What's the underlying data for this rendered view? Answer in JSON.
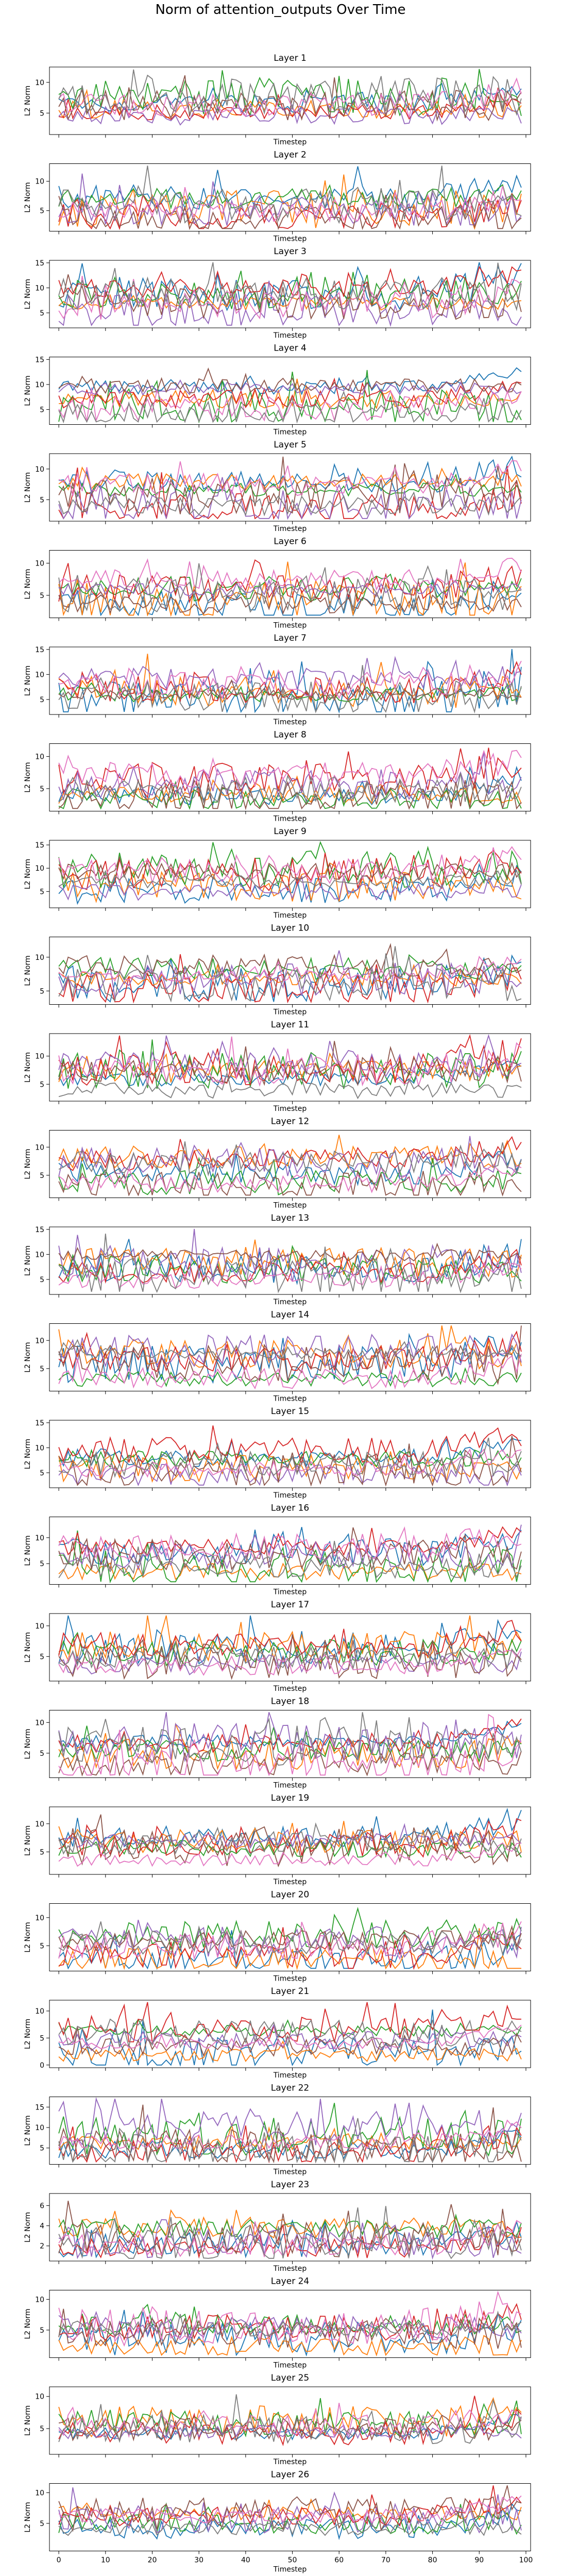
{
  "title": "Norm of attention_outputs Over Time",
  "colors": [
    "#1f77b4",
    "#ff7f0e",
    "#2ca02c",
    "#d62728",
    "#9467bd",
    "#8c564b",
    "#e377c2",
    "#7f7f7f"
  ],
  "chart_data": [
    {
      "type": "line",
      "title": "Layer 1",
      "xlabel": "Timestep",
      "ylabel": "L2 Norm",
      "xlim": [
        -2,
        101
      ],
      "ylim": [
        1.5,
        12.5
      ],
      "yticks": [
        5,
        10
      ],
      "grid": false
    },
    {
      "type": "line",
      "title": "Layer 2",
      "xlabel": "Timestep",
      "ylabel": "L2 Norm",
      "xlim": [
        -2,
        101
      ],
      "ylim": [
        1.5,
        13
      ],
      "yticks": [
        5,
        10
      ],
      "grid": false
    },
    {
      "type": "line",
      "title": "Layer 3",
      "xlabel": "Timestep",
      "ylabel": "L2 Norm",
      "xlim": [
        -2,
        101
      ],
      "ylim": [
        2,
        15.5
      ],
      "yticks": [
        5,
        10,
        15
      ],
      "grid": false
    },
    {
      "type": "line",
      "title": "Layer 4",
      "xlabel": "Timestep",
      "ylabel": "L2 Norm",
      "xlim": [
        -2,
        101
      ],
      "ylim": [
        2,
        15.5
      ],
      "yticks": [
        5,
        10,
        15
      ],
      "grid": false
    },
    {
      "type": "line",
      "title": "Layer 5",
      "xlabel": "Timestep",
      "ylabel": "L2 Norm",
      "xlim": [
        -2,
        101
      ],
      "ylim": [
        1.5,
        12.5
      ],
      "yticks": [
        5,
        10
      ],
      "grid": false
    },
    {
      "type": "line",
      "title": "Layer 6",
      "xlabel": "Timestep",
      "ylabel": "L2 Norm",
      "xlim": [
        -2,
        101
      ],
      "ylim": [
        1.5,
        12
      ],
      "yticks": [
        5,
        10
      ],
      "grid": false
    },
    {
      "type": "line",
      "title": "Layer 7",
      "xlabel": "Timestep",
      "ylabel": "L2 Norm",
      "xlim": [
        -2,
        101
      ],
      "ylim": [
        2,
        15.5
      ],
      "yticks": [
        5,
        10,
        15
      ],
      "grid": false
    },
    {
      "type": "line",
      "title": "Layer 8",
      "xlabel": "Timestep",
      "ylabel": "L2 Norm",
      "xlim": [
        -2,
        101
      ],
      "ylim": [
        1.5,
        12
      ],
      "yticks": [
        5,
        10
      ],
      "grid": false
    },
    {
      "type": "line",
      "title": "Layer 9",
      "xlabel": "Timestep",
      "ylabel": "L2 Norm",
      "xlim": [
        -2,
        101
      ],
      "ylim": [
        1.5,
        16
      ],
      "yticks": [
        5,
        10,
        15
      ],
      "grid": false
    },
    {
      "type": "line",
      "title": "Layer 10",
      "xlabel": "Timestep",
      "ylabel": "L2 Norm",
      "xlim": [
        -2,
        101
      ],
      "ylim": [
        3,
        13
      ],
      "yticks": [
        5,
        10
      ],
      "grid": false
    },
    {
      "type": "line",
      "title": "Layer 11",
      "xlabel": "Timestep",
      "ylabel": "L2 Norm",
      "xlim": [
        -2,
        101
      ],
      "ylim": [
        2,
        14
      ],
      "yticks": [
        5,
        10
      ],
      "grid": false
    },
    {
      "type": "line",
      "title": "Layer 12",
      "xlabel": "Timestep",
      "ylabel": "L2 Norm",
      "xlim": [
        -2,
        101
      ],
      "ylim": [
        1,
        13
      ],
      "yticks": [
        5,
        10
      ],
      "grid": false
    },
    {
      "type": "line",
      "title": "Layer 13",
      "xlabel": "Timestep",
      "ylabel": "L2 Norm",
      "xlim": [
        -2,
        101
      ],
      "ylim": [
        2,
        15.5
      ],
      "yticks": [
        5,
        10,
        15
      ],
      "grid": false
    },
    {
      "type": "line",
      "title": "Layer 14",
      "xlabel": "Timestep",
      "ylabel": "L2 Norm",
      "xlim": [
        -2,
        101
      ],
      "ylim": [
        1,
        13
      ],
      "yticks": [
        5,
        10
      ],
      "grid": false
    },
    {
      "type": "line",
      "title": "Layer 15",
      "xlabel": "Timestep",
      "ylabel": "L2 Norm",
      "xlim": [
        -2,
        101
      ],
      "ylim": [
        2,
        15.5
      ],
      "yticks": [
        5,
        10,
        15
      ],
      "grid": false
    },
    {
      "type": "line",
      "title": "Layer 16",
      "xlabel": "Timestep",
      "ylabel": "L2 Norm",
      "xlim": [
        -2,
        101
      ],
      "ylim": [
        1,
        14
      ],
      "yticks": [
        5,
        10
      ],
      "grid": false
    },
    {
      "type": "line",
      "title": "Layer 17",
      "xlabel": "Timestep",
      "ylabel": "L2 Norm",
      "xlim": [
        -2,
        101
      ],
      "ylim": [
        1,
        12
      ],
      "yticks": [
        5,
        10
      ],
      "grid": false
    },
    {
      "type": "line",
      "title": "Layer 18",
      "xlabel": "Timestep",
      "ylabel": "L2 Norm",
      "xlim": [
        -2,
        101
      ],
      "ylim": [
        1,
        12
      ],
      "yticks": [
        5,
        10
      ],
      "grid": false
    },
    {
      "type": "line",
      "title": "Layer 19",
      "xlabel": "Timestep",
      "ylabel": "L2 Norm",
      "xlim": [
        -2,
        101
      ],
      "ylim": [
        1,
        13
      ],
      "yticks": [
        5,
        10
      ],
      "grid": false
    },
    {
      "type": "line",
      "title": "Layer 20",
      "xlabel": "Timestep",
      "ylabel": "L2 Norm",
      "xlim": [
        -2,
        101
      ],
      "ylim": [
        0.5,
        12.5
      ],
      "yticks": [
        5,
        10
      ],
      "grid": false
    },
    {
      "type": "line",
      "title": "Layer 21",
      "xlabel": "Timestep",
      "ylabel": "L2 Norm",
      "xlim": [
        -2,
        101
      ],
      "ylim": [
        -0.5,
        12
      ],
      "yticks": [
        0,
        5,
        10
      ],
      "grid": false
    },
    {
      "type": "line",
      "title": "Layer 22",
      "xlabel": "Timestep",
      "ylabel": "L2 Norm",
      "xlim": [
        -2,
        101
      ],
      "ylim": [
        1,
        17.5
      ],
      "yticks": [
        5,
        10,
        15
      ],
      "grid": false
    },
    {
      "type": "line",
      "title": "Layer 23",
      "xlabel": "Timestep",
      "ylabel": "L2 Norm",
      "xlim": [
        -2,
        101
      ],
      "ylim": [
        0.5,
        7.2
      ],
      "yticks": [
        2,
        4,
        6
      ],
      "grid": false
    },
    {
      "type": "line",
      "title": "Layer 24",
      "xlabel": "Timestep",
      "ylabel": "L2 Norm",
      "xlim": [
        -2,
        101
      ],
      "ylim": [
        0.5,
        11.5
      ],
      "yticks": [
        5,
        10
      ],
      "grid": false
    },
    {
      "type": "line",
      "title": "Layer 25",
      "xlabel": "Timestep",
      "ylabel": "L2 Norm",
      "xlim": [
        -2,
        101
      ],
      "ylim": [
        1,
        11.5
      ],
      "yticks": [
        5,
        10
      ],
      "grid": false
    },
    {
      "type": "line",
      "title": "Layer 26",
      "xlabel": "Timestep",
      "ylabel": "L2 Norm",
      "xlim": [
        -2,
        101
      ],
      "ylim": [
        0.5,
        11.5
      ],
      "yticks": [
        5,
        10
      ],
      "grid": false,
      "xticks": [
        0,
        10,
        20,
        30,
        40,
        50,
        60,
        70,
        80,
        90,
        100
      ]
    }
  ]
}
